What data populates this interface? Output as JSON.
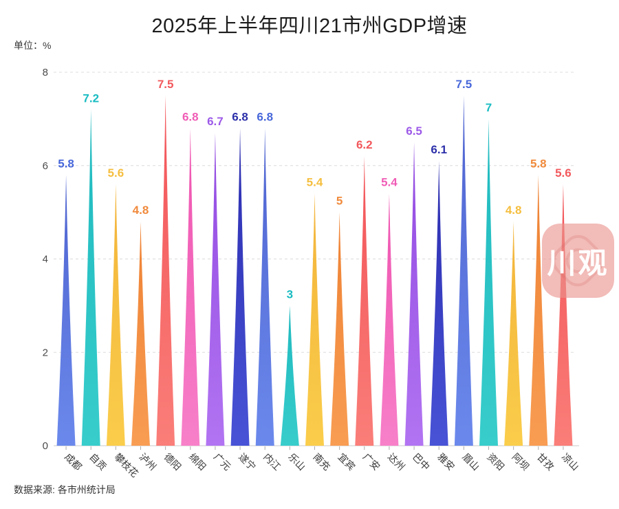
{
  "source_note": "数据来源: 各市州统计局",
  "watermark": {
    "text": "川观",
    "bg_color": "rgba(234,147,140,0.62)"
  },
  "chart_data": {
    "type": "bar",
    "title": "2025年上半年四川21市州GDP增速",
    "ylabel": "单位：%",
    "xlabel": "",
    "ylim": [
      0,
      8
    ],
    "yticks": [
      0,
      2,
      4,
      6,
      8
    ],
    "grid": "horizontal dashed",
    "legend": "none",
    "bar_style": "tapered spike with pointed tip, value label above each tip colored like the bar",
    "categories": [
      "成都",
      "自贡",
      "攀枝花",
      "泸州",
      "德阳",
      "绵阳",
      "广元",
      "遂宁",
      "内江",
      "乐山",
      "南充",
      "宜宾",
      "广安",
      "达州",
      "巴中",
      "雅安",
      "眉山",
      "资阳",
      "阿坝",
      "甘孜",
      "凉山"
    ],
    "values": [
      5.8,
      7.2,
      5.6,
      4.8,
      7.5,
      6.8,
      6.7,
      6.8,
      6.8,
      3,
      5.4,
      5,
      6.2,
      5.4,
      6.5,
      6.1,
      7.5,
      7,
      4.8,
      5.8,
      5.6
    ],
    "palette": [
      {
        "name": "blue",
        "label_color": "#4767DA",
        "top": "#4E63CF",
        "bottom": "#6B89EC"
      },
      {
        "name": "teal",
        "label_color": "#19BCC2",
        "top": "#1EB9BF",
        "bottom": "#38CDCB"
      },
      {
        "name": "yellow",
        "label_color": "#F5BE3E",
        "top": "#F3B33A",
        "bottom": "#FACD4B"
      },
      {
        "name": "orange",
        "label_color": "#F08A3C",
        "top": "#EE8133",
        "bottom": "#F89D53"
      },
      {
        "name": "red",
        "label_color": "#F2585C",
        "top": "#F25358",
        "bottom": "#FA7E79"
      },
      {
        "name": "pink",
        "label_color": "#F05CB6",
        "top": "#EF52AF",
        "bottom": "#F780C9"
      },
      {
        "name": "purple",
        "label_color": "#9C59E8",
        "top": "#9149E0",
        "bottom": "#B274F2"
      },
      {
        "name": "indigo",
        "label_color": "#2C2FA9",
        "top": "#2B2CAE",
        "bottom": "#4853D6"
      }
    ],
    "axis_colors": {
      "grid": "#DCDCDC",
      "axis_line": "#C9C9C9",
      "tick": "#ABABAB",
      "ytick_label": "#4A4A4A",
      "category_label": "#3A3A3A"
    }
  }
}
